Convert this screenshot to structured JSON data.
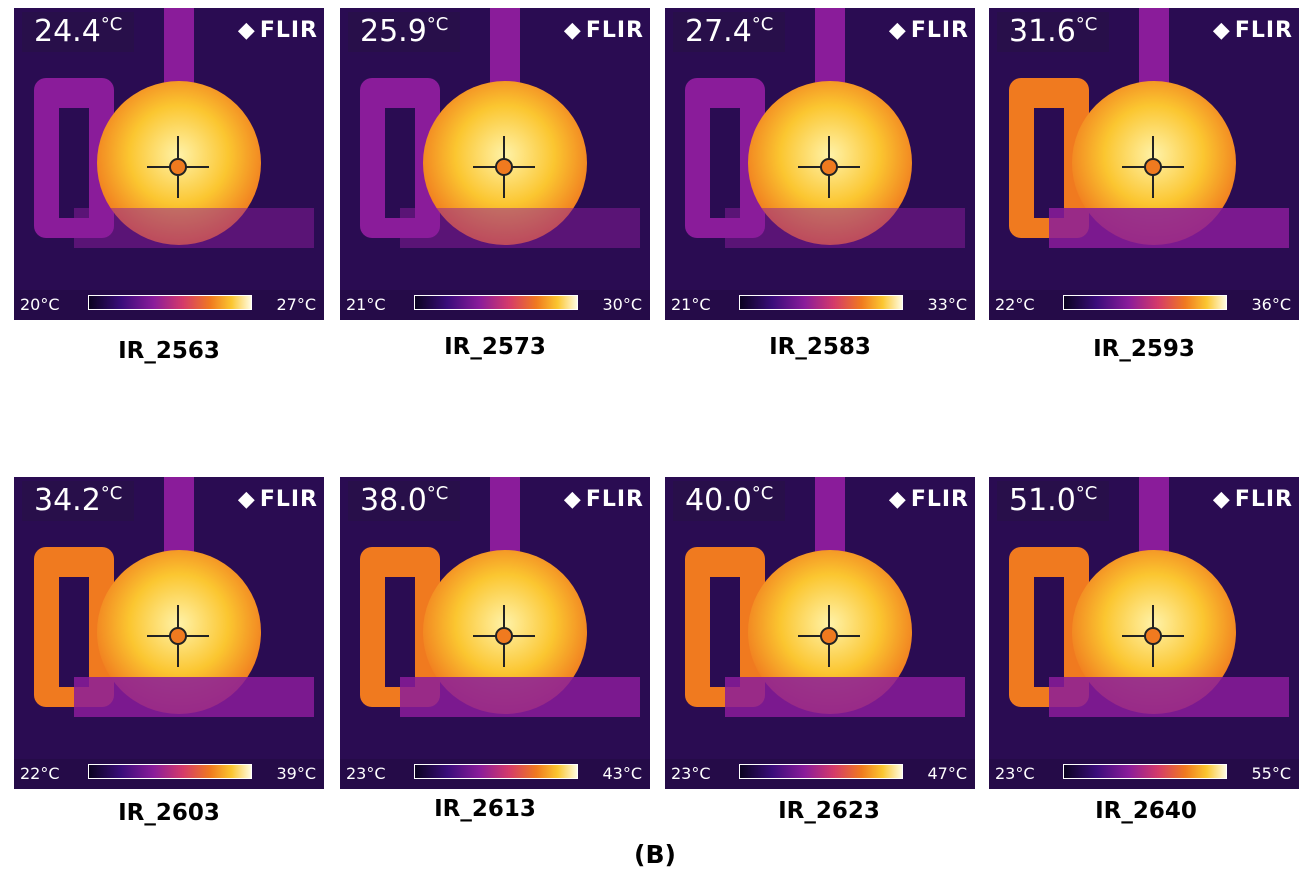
{
  "panel_label": "(B)",
  "frames": [
    {
      "id": "IR_2563",
      "temp": "24.4",
      "unit": "°C",
      "scale_min": "20°C",
      "scale_max": "27°C",
      "brand": "FLIR"
    },
    {
      "id": "IR_2573",
      "temp": "25.9",
      "unit": "°C",
      "scale_min": "21°C",
      "scale_max": "30°C",
      "brand": "FLIR"
    },
    {
      "id": "IR_2583",
      "temp": "27.4",
      "unit": "°C",
      "scale_min": "21°C",
      "scale_max": "33°C",
      "brand": "FLIR"
    },
    {
      "id": "IR_2593",
      "temp": "31.6",
      "unit": "°C",
      "scale_min": "22°C",
      "scale_max": "36°C",
      "brand": "FLIR"
    },
    {
      "id": "IR_2603",
      "temp": "34.2",
      "unit": "°C",
      "scale_min": "22°C",
      "scale_max": "39°C",
      "brand": "FLIR"
    },
    {
      "id": "IR_2613",
      "temp": "38.0",
      "unit": "°C",
      "scale_min": "23°C",
      "scale_max": "43°C",
      "brand": "FLIR"
    },
    {
      "id": "IR_2623",
      "temp": "40.0",
      "unit": "°C",
      "scale_min": "23°C",
      "scale_max": "47°C",
      "brand": "FLIR"
    },
    {
      "id": "IR_2640",
      "temp": "51.0",
      "unit": "°C",
      "scale_min": "23°C",
      "scale_max": "55°C",
      "brand": "FLIR"
    }
  ],
  "colors": {
    "background": "#2a0c52",
    "flask_hot": "#fbc630",
    "flask_core": "#fff2a8",
    "frame_purple": "#8a1c9a",
    "frame_orange": "#f07a1f"
  }
}
